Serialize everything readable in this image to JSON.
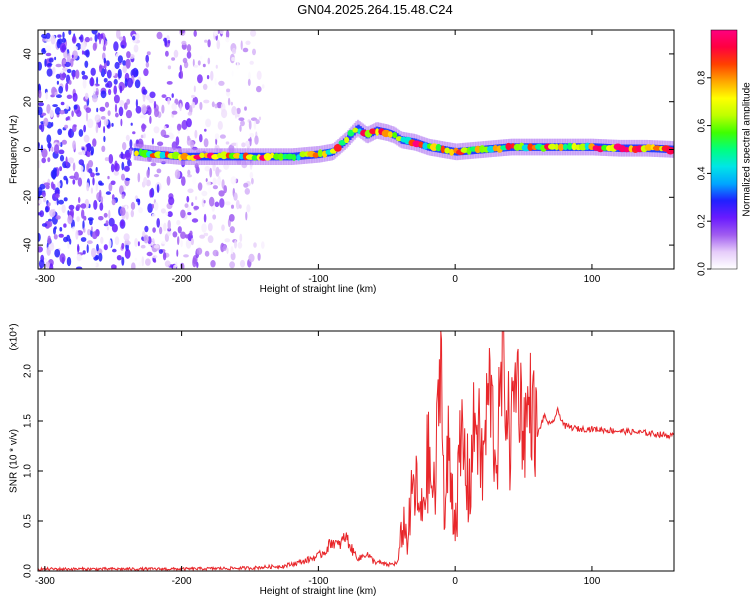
{
  "title": "GN04.2025.264.15.48.C24",
  "chart_data": [
    {
      "type": "heatmap",
      "xlabel": "Height of straight line (km)",
      "ylabel": "Frequency (Hz)",
      "xlim": [
        -305,
        160
      ],
      "ylim": [
        -50,
        50
      ],
      "xticks": [
        -300,
        -200,
        -100,
        0,
        100
      ],
      "yticks": [
        -40,
        -20,
        0,
        20,
        40
      ],
      "colorbar": {
        "label": "Normalized spectral amplitude",
        "range": [
          0,
          1
        ],
        "ticks": [
          0.0,
          0.2,
          0.4,
          0.6,
          0.8
        ],
        "colors": [
          "#ffffff",
          "#e6cdfa",
          "#a05cf0",
          "#6a1bff",
          "#2020ff",
          "#00a6ff",
          "#00e6e6",
          "#00ff7f",
          "#40ff00",
          "#bfff00",
          "#ffff00",
          "#ffa500",
          "#ff4000",
          "#ff0040",
          "#ff0080"
        ]
      },
      "ridge_frequency": {
        "x": [
          -235,
          -220,
          -200,
          -180,
          -160,
          -140,
          -120,
          -100,
          -90,
          -80,
          -72,
          -65,
          -58,
          -50,
          -45,
          -40,
          -30,
          -20,
          -10,
          0,
          20,
          40,
          60,
          80,
          100,
          120,
          140,
          160
        ],
        "y": [
          -1,
          -2,
          -3,
          -3,
          -3,
          -3,
          -3,
          -2,
          -1,
          4,
          9,
          6,
          8,
          7,
          6,
          4,
          3,
          1,
          0,
          -1,
          0,
          1,
          1,
          1,
          1,
          0.5,
          0.5,
          0
        ]
      },
      "noise_region_x": [
        -305,
        -140
      ]
    },
    {
      "type": "line",
      "xlabel": "Height of straight line (km)",
      "ylabel": "SNR (10 * v/v)",
      "yexponent": "(x10⁴)",
      "xlim": [
        -305,
        160
      ],
      "ylim": [
        0,
        2.4
      ],
      "xticks": [
        -300,
        -200,
        -100,
        0,
        100
      ],
      "yticks": [
        0.0,
        0.5,
        1.0,
        1.5,
        2.0
      ],
      "series": [
        {
          "color": "#e8262a",
          "x": [
            -305,
            -250,
            -200,
            -150,
            -125,
            -110,
            -100,
            -95,
            -90,
            -85,
            -80,
            -75,
            -70,
            -65,
            -60,
            -50,
            -42,
            -38,
            -35,
            -30,
            -25,
            -20,
            -15,
            -12,
            -10,
            -8,
            -5,
            0,
            5,
            10,
            15,
            20,
            25,
            30,
            35,
            40,
            45,
            50,
            55,
            60,
            65,
            70,
            75,
            80,
            90,
            100,
            120,
            140,
            160
          ],
          "y": [
            0.02,
            0.02,
            0.02,
            0.03,
            0.05,
            0.1,
            0.15,
            0.2,
            0.3,
            0.25,
            0.35,
            0.2,
            0.12,
            0.18,
            0.1,
            0.06,
            0.08,
            0.5,
            0.3,
            0.9,
            0.5,
            1.1,
            0.7,
            1.7,
            2.35,
            0.4,
            1.2,
            0.5,
            1.3,
            0.8,
            1.6,
            1.0,
            1.9,
            1.1,
            2.1,
            1.3,
            2.05,
            1.4,
            1.7,
            1.35,
            1.55,
            1.45,
            1.6,
            1.45,
            1.42,
            1.42,
            1.4,
            1.38,
            1.35
          ]
        }
      ]
    }
  ]
}
